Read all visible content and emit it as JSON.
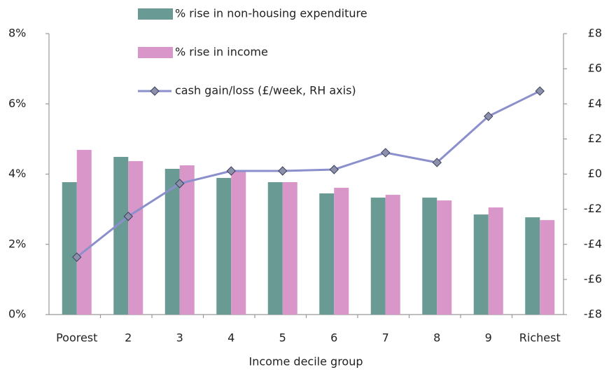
{
  "chart_data": {
    "type": "bar",
    "x_label": "Income decile group",
    "categories": [
      "Poorest",
      "2",
      "3",
      "4",
      "5",
      "6",
      "7",
      "8",
      "9",
      "Richest"
    ],
    "series": [
      {
        "name": "% rise in non-housing expenditure",
        "color": "#6a9a94",
        "values": [
          3.77,
          4.49,
          4.15,
          3.89,
          3.77,
          3.45,
          3.33,
          3.33,
          2.85,
          2.77
        ]
      },
      {
        "name": "% rise in income",
        "color": "#d996c8",
        "values": [
          4.69,
          4.37,
          4.25,
          4.09,
          3.77,
          3.61,
          3.41,
          3.25,
          3.05,
          2.69
        ]
      },
      {
        "name": "cash gain/loss  (£/week, RH axis)",
        "color": "#8b8fcb",
        "type": "line",
        "axis": "y2",
        "values": [
          -4.73,
          -2.41,
          -0.54,
          0.18,
          0.18,
          0.26,
          1.22,
          0.66,
          3.29,
          4.73
        ]
      }
    ],
    "ylim": [
      0,
      8
    ],
    "yticks": [
      {
        "value": 0,
        "label": "0%"
      },
      {
        "value": 2,
        "label": "2%"
      },
      {
        "value": 4,
        "label": "4%"
      },
      {
        "value": 6,
        "label": "6%"
      },
      {
        "value": 8,
        "label": "8%"
      }
    ],
    "y2lim": [
      -8,
      8
    ],
    "y2ticks": [
      {
        "value": -8,
        "label": "-£8"
      },
      {
        "value": -6,
        "label": "-£6"
      },
      {
        "value": -4,
        "label": "-£4"
      },
      {
        "value": -2,
        "label": "-£2"
      },
      {
        "value": 0,
        "label": "£0"
      },
      {
        "value": 2,
        "label": "£2"
      },
      {
        "value": 4,
        "label": "£4"
      },
      {
        "value": 6,
        "label": "£6"
      },
      {
        "value": 8,
        "label": "£8"
      }
    ],
    "grid": false
  }
}
